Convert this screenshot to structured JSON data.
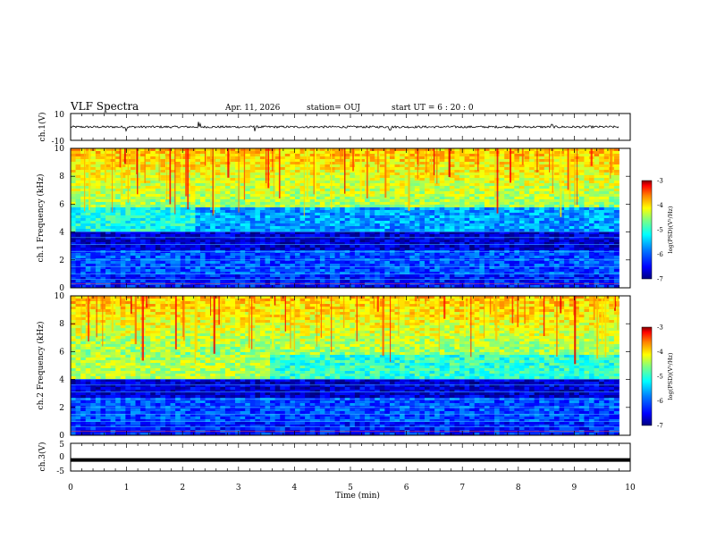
{
  "header": {
    "title": "VLF Spectra",
    "date": "Apr. 11, 2026",
    "station": "station= OUJ",
    "start_ut": "start  UT =   6  : 20 : 0"
  },
  "chart_data": [
    {
      "type": "line",
      "name": "ch1-waveform",
      "ylabel": "ch.1(V)",
      "ylim": [
        -10,
        10
      ],
      "yticks": [
        "10",
        "-10"
      ],
      "xlim": [
        0,
        10
      ],
      "baseline": 0,
      "amplitude_typical": 0.8,
      "spikes": [
        [
          1.0,
          3.0
        ],
        [
          2.3,
          4.0
        ],
        [
          3.3,
          3.5
        ],
        [
          5.7,
          3.0
        ],
        [
          8.6,
          2.5
        ]
      ]
    },
    {
      "type": "heatmap",
      "name": "ch1-spectrogram",
      "ylabel": "ch.1 Frequency (kHz)",
      "ylim": [
        0,
        10
      ],
      "yticks": [
        "0",
        "2",
        "4",
        "6",
        "8",
        "10"
      ],
      "xlim": [
        0,
        9.8
      ],
      "colorbar": {
        "label": "log(PSD)(V²/Hz)",
        "range": [
          -7,
          -3
        ],
        "ticks": [
          "-3",
          "-4",
          "-5",
          "-6",
          "-7"
        ]
      }
    },
    {
      "type": "heatmap",
      "name": "ch2-spectrogram",
      "ylabel": "ch.2 Frequency (kHz)",
      "ylim": [
        0,
        10
      ],
      "yticks": [
        "0",
        "2",
        "4",
        "6",
        "8",
        "10"
      ],
      "xlim": [
        0,
        9.8
      ],
      "colorbar": {
        "label": "log(PSD)(V²/Hz)",
        "range": [
          -7,
          -3
        ],
        "ticks": [
          "-3",
          "-4",
          "-5",
          "-6",
          "-7"
        ]
      }
    },
    {
      "type": "line",
      "name": "ch3-waveform",
      "ylabel": "ch.3(V)",
      "ylim": [
        -5,
        5
      ],
      "yticks": [
        "5",
        "0",
        "-5"
      ],
      "xlim": [
        0,
        10
      ],
      "value": -1.0
    }
  ],
  "xaxis": {
    "label": "Time  (min)",
    "ticks": [
      "0",
      "1",
      "2",
      "3",
      "4",
      "5",
      "6",
      "7",
      "8",
      "9",
      "10"
    ]
  },
  "colors": {
    "palette": [
      "#000080",
      "#0000ff",
      "#0080ff",
      "#00ffff",
      "#80ff80",
      "#ffff00",
      "#ff8000",
      "#ff0000",
      "#800000"
    ]
  }
}
